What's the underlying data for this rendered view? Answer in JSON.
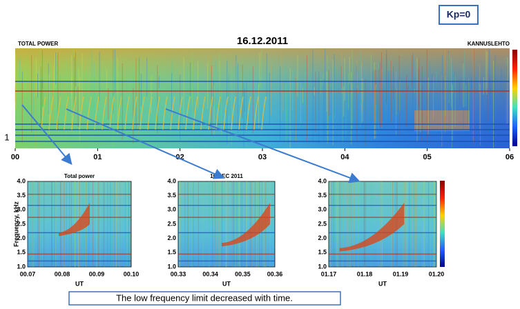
{
  "badge": "Kp=0",
  "top_panel": {
    "title": "16.12.2011",
    "left_label": "TOTAL POWER",
    "right_label": "KANNUSLEHTO",
    "side_label": "1",
    "x_labels": [
      "00",
      "01",
      "02",
      "03",
      "04",
      "05",
      "06"
    ]
  },
  "insets": [
    {
      "title": "Total power",
      "y_axis_label": "Frequency, kHz",
      "y_labels": [
        "4.0",
        "3.5",
        "3.0",
        "2.5",
        "2.0",
        "1.5",
        "1.0"
      ],
      "x_labels": [
        "00.07",
        "00.08",
        "00.09",
        "00.10"
      ],
      "x_axis_label": "UT"
    },
    {
      "title": "16 DEC 2011",
      "y_labels": [
        "4.0",
        "3.5",
        "3.0",
        "2.5",
        "2.0",
        "1.5",
        "1.0"
      ],
      "x_labels": [
        "00.33",
        "00.34",
        "00.35",
        "00.36"
      ],
      "x_axis_label": "UT"
    },
    {
      "y_labels": [
        "4.0",
        "3.5",
        "3.0",
        "2.5",
        "2.0",
        "1.5",
        "1.0"
      ],
      "x_labels": [
        "01.17",
        "01.18",
        "01.19",
        "01.20"
      ],
      "x_axis_label": "UT"
    }
  ],
  "caption": "The low frequency limit decreased with time."
}
